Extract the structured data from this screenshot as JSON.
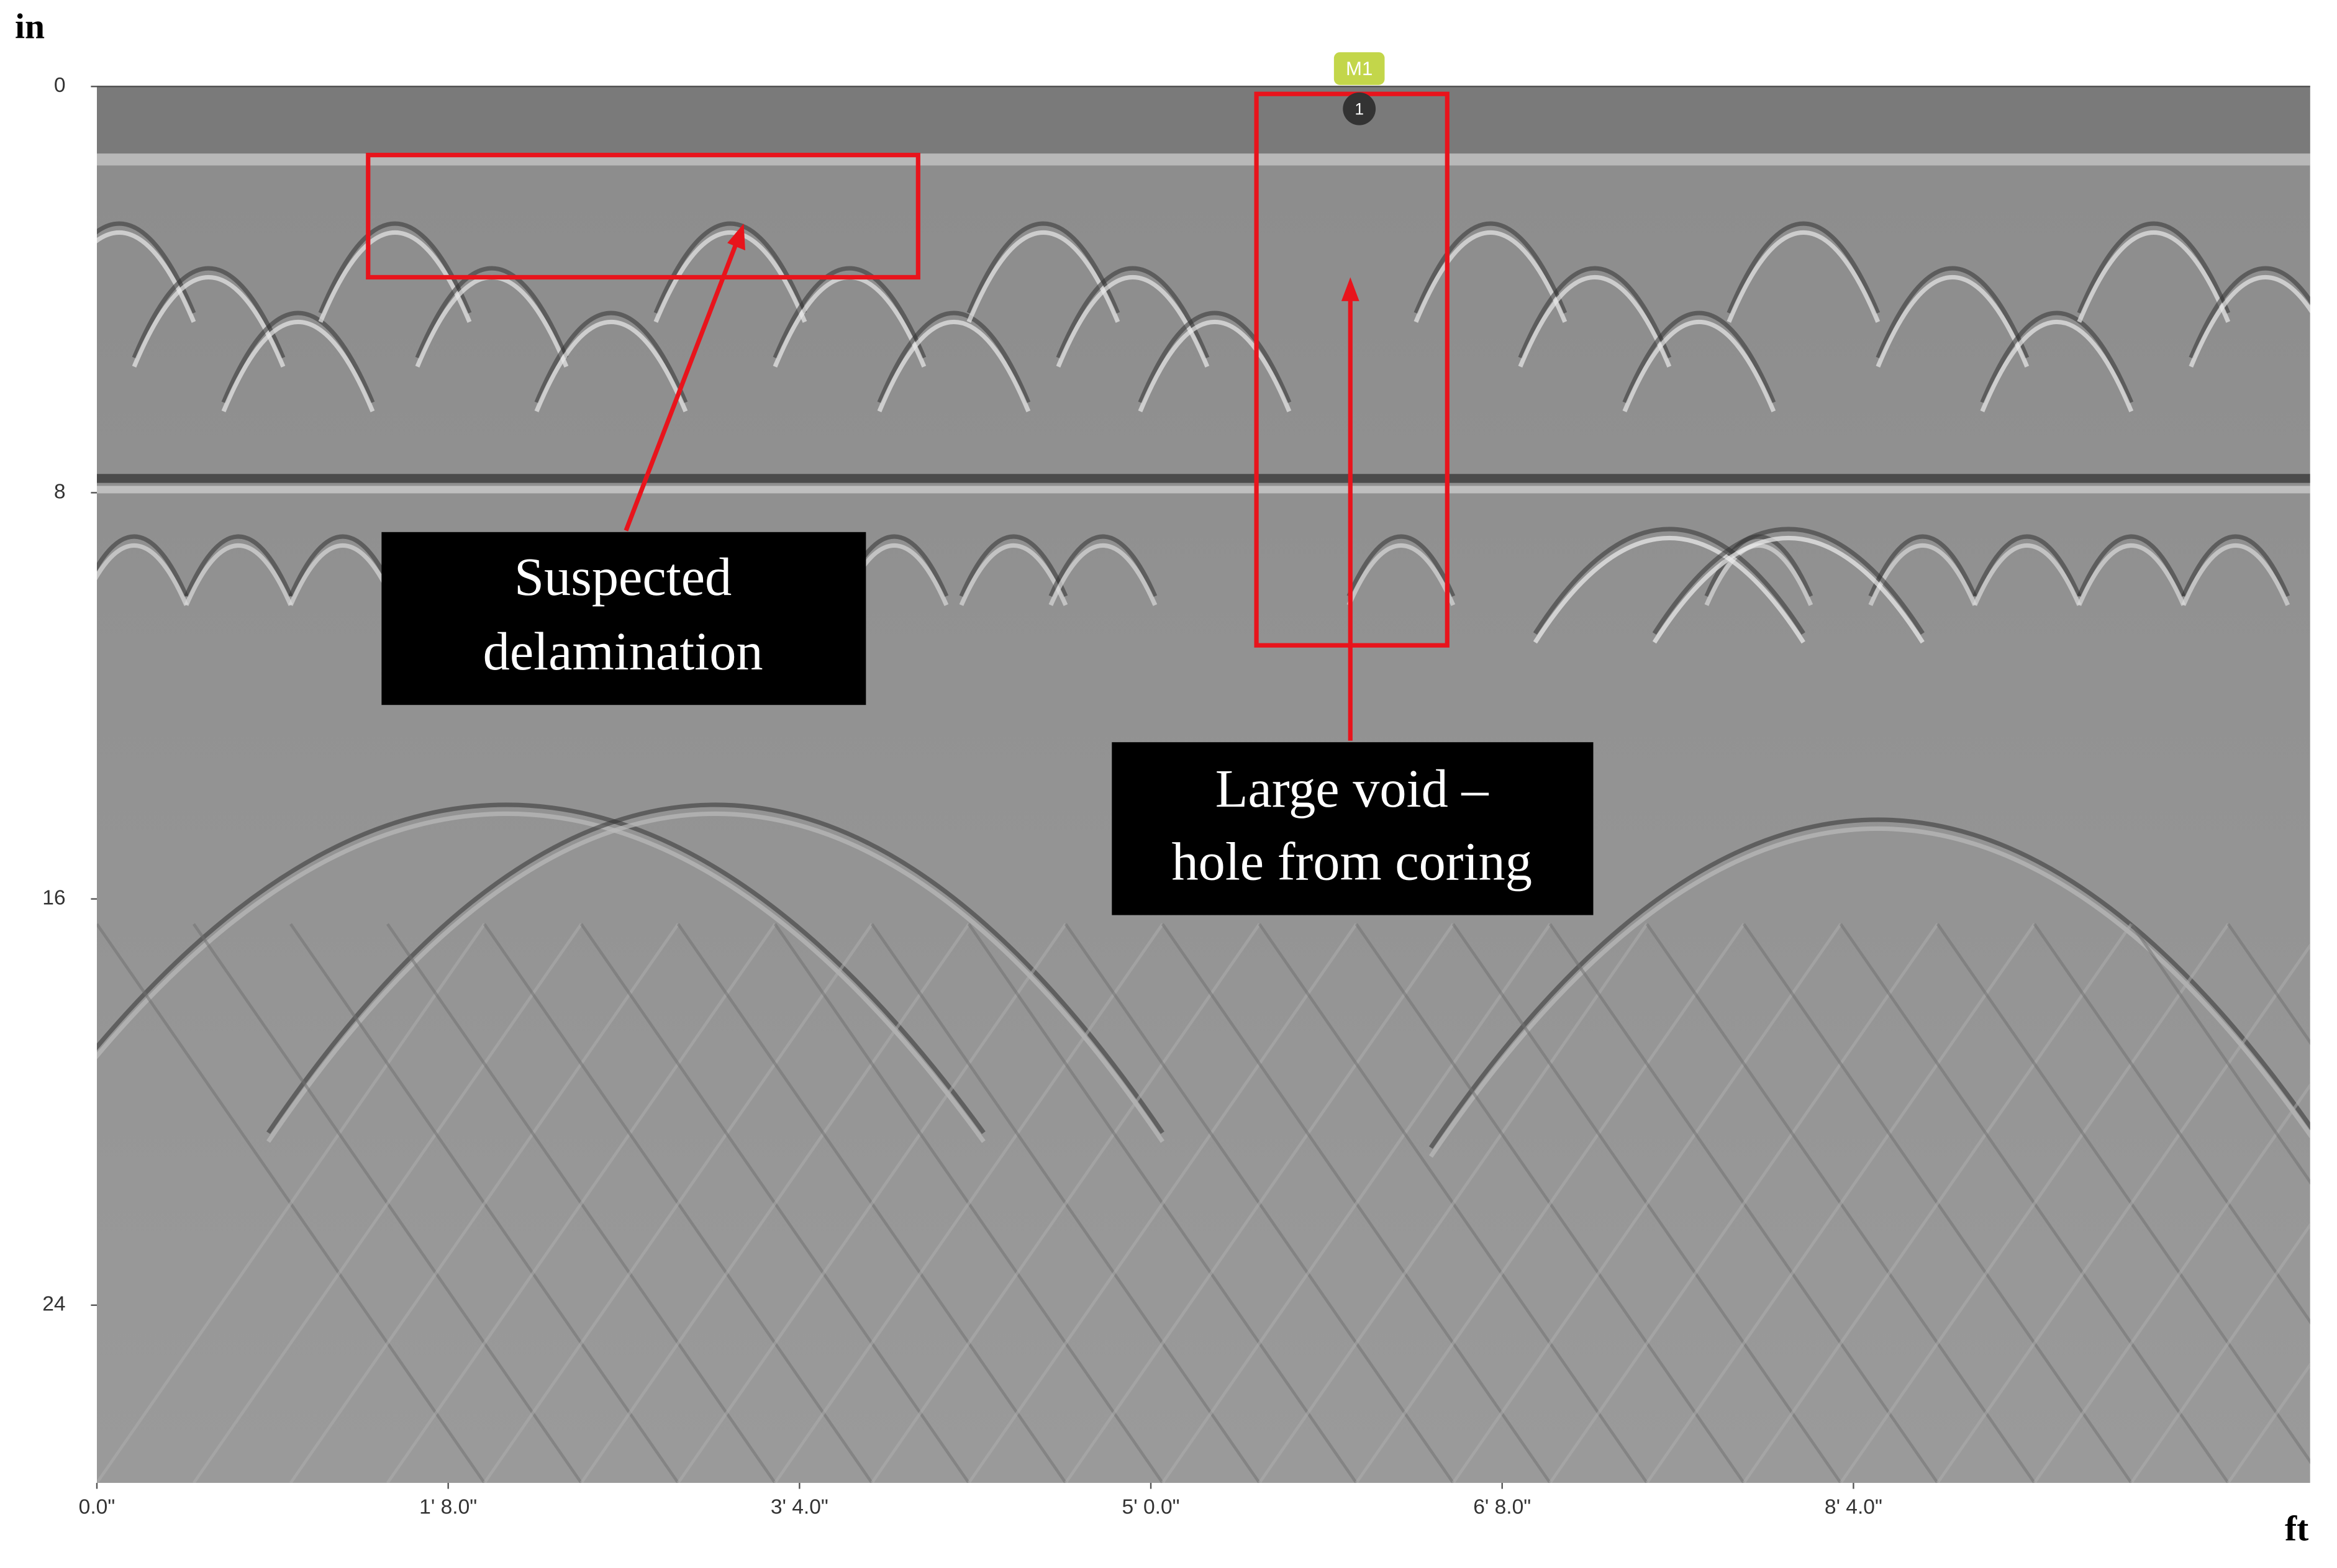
{
  "y_axis": {
    "unit": "in",
    "range": [
      0,
      27.5
    ],
    "ticks": [
      0,
      8,
      16,
      24
    ]
  },
  "x_axis": {
    "unit": "ft",
    "range": [
      0,
      126
    ],
    "ticks": [
      {
        "value": 0,
        "label": "0.0\""
      },
      {
        "value": 20,
        "label": "1' 8.0\""
      },
      {
        "value": 40,
        "label": "3' 4.0\""
      },
      {
        "value": 60,
        "label": "5' 0.0\""
      },
      {
        "value": 80,
        "label": "6' 8.0\""
      },
      {
        "value": 100,
        "label": "8' 4.0\""
      }
    ]
  },
  "marker": {
    "label": "M1",
    "number": "1"
  },
  "annotations": [
    {
      "lines": [
        "Suspected",
        "delamination"
      ]
    },
    {
      "lines": [
        "Large void –",
        "hole from coring"
      ]
    }
  ]
}
